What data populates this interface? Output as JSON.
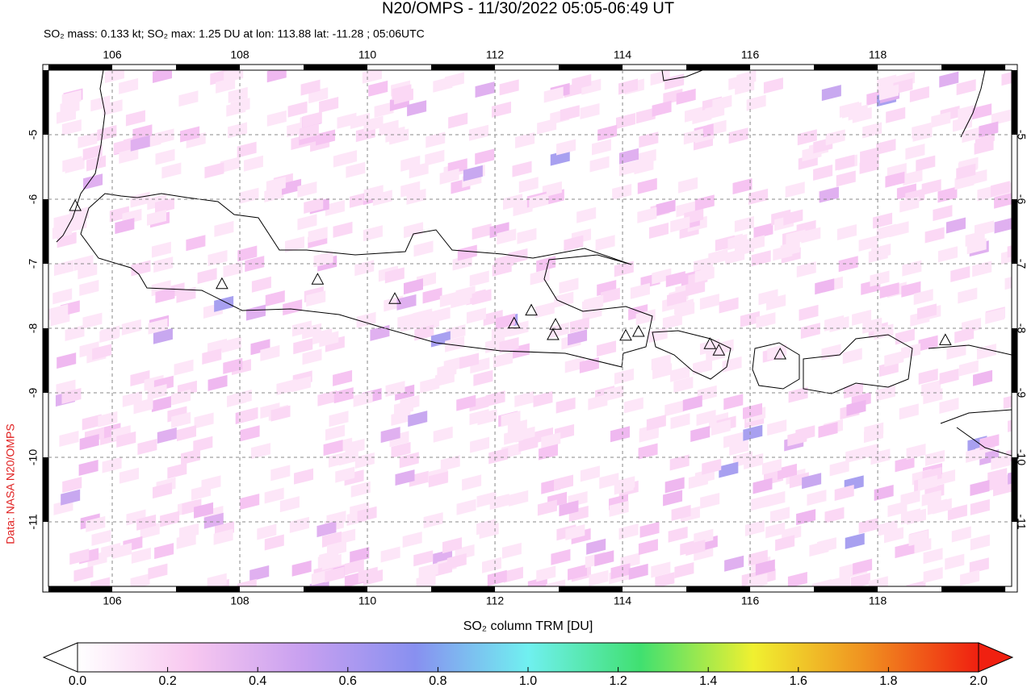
{
  "chart_data": {
    "type": "map",
    "title": "N20/OMPS - 11/30/2022 05:05-06:49 UT",
    "subtitle": "SO₂ mass: 0.133 kt; SO₂ max: 1.25 DU at lon: 113.88 lat: -11.28 ; 05:06UTC",
    "source": "Data: NASA N20/OMPS",
    "xlim": [
      105,
      120.1
    ],
    "ylim": [
      -12,
      -4
    ],
    "xticks": [
      106,
      108,
      110,
      112,
      114,
      116,
      118
    ],
    "yticks": [
      -5,
      -6,
      -7,
      -8,
      -9,
      -10,
      -11
    ],
    "grid": true,
    "volcanoes": {
      "x": [
        105.42,
        107.72,
        109.22,
        110.43,
        112.3,
        112.57,
        112.95,
        112.91,
        114.05,
        114.25,
        115.37,
        115.51,
        116.47,
        119.06
      ],
      "y": [
        -6.1,
        -7.31,
        -7.24,
        -7.54,
        -7.92,
        -7.72,
        -7.94,
        -8.1,
        -8.11,
        -8.05,
        -8.24,
        -8.34,
        -8.4,
        -8.18
      ]
    },
    "colorbar": {
      "label": "SO₂ column TRM [DU]",
      "lim": [
        0,
        2
      ],
      "ticks": [
        {
          "value": 0,
          "label": "0.0"
        },
        0.2,
        0.4,
        0.6,
        0.8,
        {
          "value": 1,
          "label": "1.0"
        },
        1.2,
        1.4,
        1.6,
        1.8,
        {
          "value": 2,
          "label": "2.0"
        }
      ],
      "colors": [
        "#ffffff",
        "#f8c8f0",
        "#c8a0f0",
        "#8890f0",
        "#70f0f0",
        "#40e070",
        "#f0f030",
        "#f09020",
        "#f02010"
      ]
    }
  }
}
